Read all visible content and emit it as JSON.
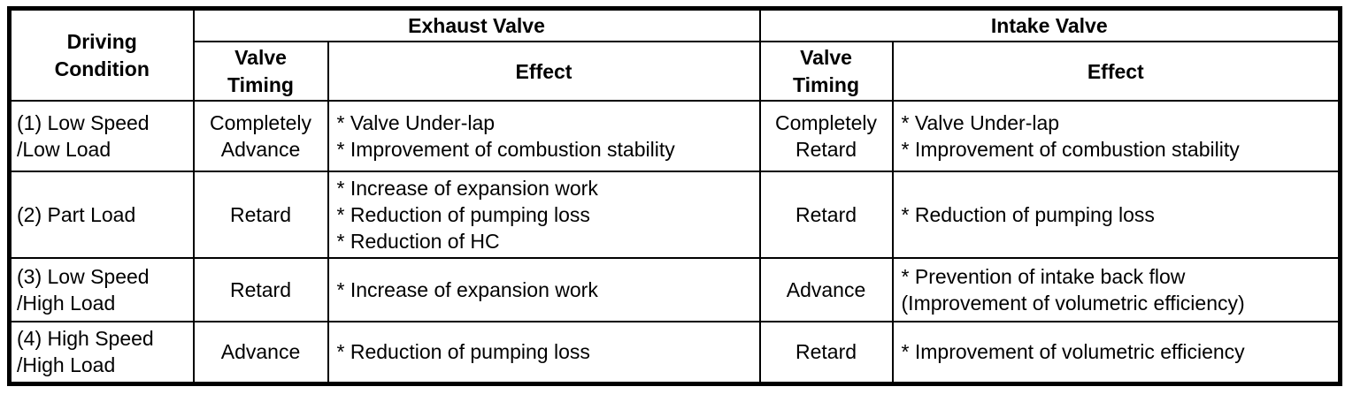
{
  "table": {
    "header": {
      "driving_condition": "Driving\nCondition",
      "exhaust_valve": "Exhaust Valve",
      "intake_valve": "Intake Valve",
      "exhaust": {
        "valve_timing": "Valve\nTiming",
        "effect": "Effect"
      },
      "intake": {
        "valve_timing": "Valve\nTiming",
        "effect": "Effect"
      }
    },
    "rows": [
      {
        "condition": "(1) Low Speed\n/Low Load",
        "exhaust_timing": "Completely\nAdvance",
        "exhaust_effects": [
          "* Valve Under-lap",
          "* Improvement of combustion stability"
        ],
        "intake_timing": "Completely\nRetard",
        "intake_effects": [
          "* Valve Under-lap",
          "* Improvement of combustion stability"
        ]
      },
      {
        "condition": "(2) Part Load",
        "exhaust_timing": "Retard",
        "exhaust_effects": [
          "* Increase of expansion work",
          "* Reduction of pumping loss",
          "* Reduction of HC"
        ],
        "intake_timing": "Retard",
        "intake_effects": [
          "* Reduction of pumping loss"
        ]
      },
      {
        "condition": "(3) Low Speed\n/High Load",
        "exhaust_timing": "Retard",
        "exhaust_effects": [
          "* Increase of expansion work"
        ],
        "intake_timing": "Advance",
        "intake_effects": [
          "* Prevention of intake back flow",
          "(Improvement of volumetric efficiency)"
        ]
      },
      {
        "condition": "(4) High Speed\n/High Load",
        "exhaust_timing": "Advance",
        "exhaust_effects": [
          "* Reduction of pumping loss"
        ],
        "intake_timing": "Retard",
        "intake_effects": [
          "* Improvement of volumetric efficiency"
        ]
      }
    ],
    "colors": {
      "border": "#000000",
      "background": "#ffffff",
      "text": "#000000"
    }
  }
}
